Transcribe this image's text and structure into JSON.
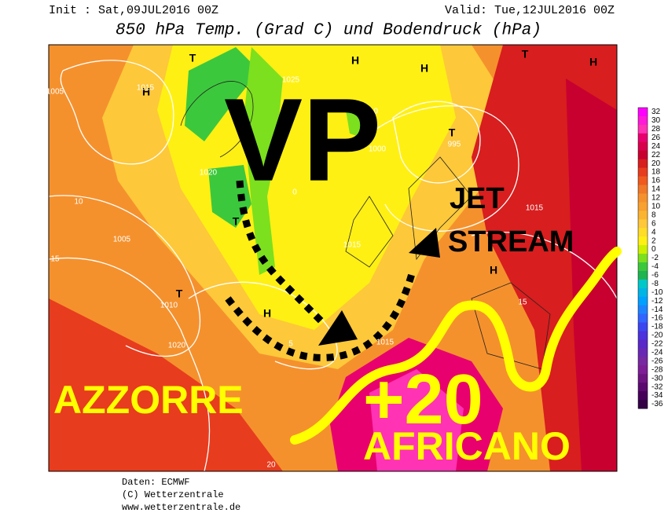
{
  "header": {
    "init": "Init : Sat,09JUL2016 00Z",
    "valid": "Valid: Tue,12JUL2016 00Z",
    "title": "850 hPa Temp. (Grad C) und Bodendruck (hPa)"
  },
  "annotations": {
    "vp": "VP",
    "jet": "JET",
    "stream": "STREAM",
    "azzorre": "AZZORRE",
    "plus20": "+20",
    "africano": "AFRICANO"
  },
  "map_labels": [
    "H",
    "H",
    "H",
    "H",
    "H",
    "H",
    "T",
    "T",
    "T",
    "T",
    "T",
    "1015",
    "1020",
    "1025",
    "1010",
    "1005",
    "1000",
    "995",
    "1015",
    "1020",
    "1010",
    "1015",
    "1015",
    "1005",
    "10",
    "15",
    "15",
    "20",
    "0",
    "5"
  ],
  "legend": {
    "levels": [
      32,
      30,
      28,
      26,
      24,
      22,
      20,
      18,
      16,
      14,
      12,
      10,
      8,
      6,
      4,
      2,
      0,
      -2,
      -4,
      -6,
      -8,
      -10,
      -12,
      -14,
      -16,
      -18,
      -20,
      -22,
      -24,
      -26,
      -28,
      -30,
      -32,
      -34,
      -36
    ],
    "colors": [
      "#ff00ff",
      "#ff1ad9",
      "#ff33b3",
      "#e8006e",
      "#d8004a",
      "#c80030",
      "#d81e1e",
      "#e83c1e",
      "#f05a1e",
      "#f07828",
      "#f5912d",
      "#f8a030",
      "#fbb432",
      "#fdc83a",
      "#ffdc28",
      "#fff014",
      "#ccf000",
      "#7ce01e",
      "#3cc83c",
      "#1eb450",
      "#00c8c8",
      "#00b4e6",
      "#00a0ff",
      "#1e82ff",
      "#3264ff",
      "#3c46f0",
      "#4b32dc",
      "#5a28c8",
      "#6928b4",
      "#7828a0",
      "#7d1e96",
      "#6e1482",
      "#5a0a6e",
      "#46005a",
      "#320046"
    ]
  },
  "footer": {
    "source": "Daten: ECMWF",
    "copyright": "(C) Wetterzentrale",
    "url": "www.wetterzentrale.de"
  }
}
